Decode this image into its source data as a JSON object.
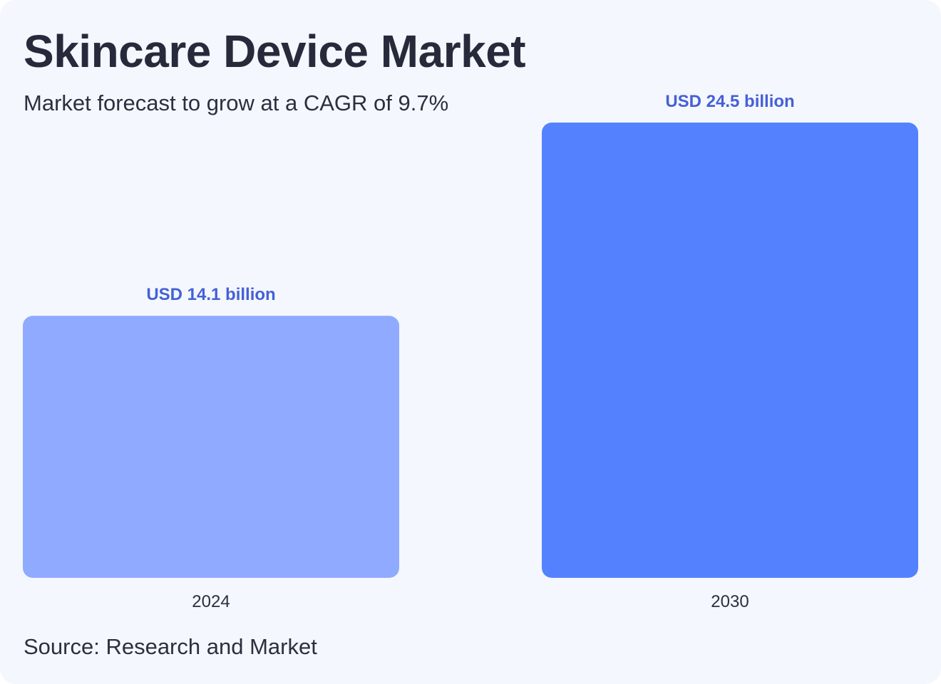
{
  "title": "Skincare Device Market",
  "subtitle": "Market forecast to grow at a CAGR of 9.7%",
  "source": "Source: Research and Market",
  "colors": {
    "background": "#f4f7fe",
    "label": "#4560d6"
  },
  "chart_data": {
    "type": "bar",
    "categories": [
      "2024",
      "2030"
    ],
    "values": [
      14.1,
      24.5
    ],
    "value_labels": [
      "USD 14.1 billion",
      "USD 24.5 billion"
    ],
    "bar_colors": [
      "#8faaff",
      "#5482ff"
    ],
    "grid": false,
    "legend": "none"
  }
}
